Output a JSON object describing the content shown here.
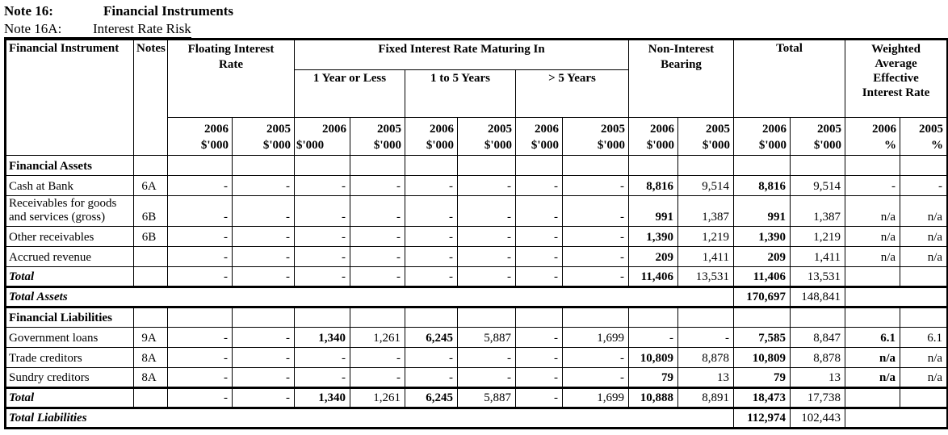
{
  "title": {
    "note_label": "Note 16:",
    "note_title": "Financial Instruments",
    "subnote_label": "Note 16A:",
    "subnote_title": "Interest Rate Risk"
  },
  "table": {
    "corner": {
      "financial_instrument": "Financial Instrument",
      "notes": "Notes"
    },
    "groups": {
      "floating": "Floating Interest Rate",
      "fixed": "Fixed Interest Rate Maturing In",
      "fixed_sub": [
        "1 Year or Less",
        "1 to 5 Years",
        "> 5 Years"
      ],
      "non_interest": "Non-Interest Bearing",
      "total": "Total",
      "weighted": "Weighted Average Effective Interest Rate"
    },
    "year_columns": [
      {
        "year": "2006",
        "unit": "$'000"
      },
      {
        "year": "2005",
        "unit": "$'000"
      },
      {
        "year": "2006",
        "unit": "$'000",
        "unit_align": "left"
      },
      {
        "year": "2005",
        "unit": "$'000"
      },
      {
        "year": "2006",
        "unit": "$'000"
      },
      {
        "year": "2005",
        "unit": "$'000"
      },
      {
        "year": "2006",
        "unit": "$'000"
      },
      {
        "year": "2005",
        "unit": "$'000"
      },
      {
        "year": "2006",
        "unit": "$'000"
      },
      {
        "year": "2005",
        "unit": "$'000"
      },
      {
        "year": "2006",
        "unit": "$'000"
      },
      {
        "year": "2005",
        "unit": "$'000"
      },
      {
        "year": "2006",
        "unit": "%"
      },
      {
        "year": "2005",
        "unit": "%"
      }
    ],
    "rows": [
      {
        "type": "section",
        "label": "Financial Assets"
      },
      {
        "type": "item",
        "label": "Cash at Bank",
        "note": "6A",
        "cells": [
          "-",
          "-",
          "-",
          "-",
          "-",
          "-",
          "-",
          "-",
          "8,816",
          "9,514",
          "8,816",
          "9,514",
          "-",
          "-"
        ],
        "bold": [
          8,
          10
        ]
      },
      {
        "type": "item",
        "label": "Receivables for goods and services (gross)",
        "note": "6B",
        "cells": [
          "-",
          "-",
          "-",
          "-",
          "-",
          "-",
          "-",
          "-",
          "991",
          "1,387",
          "991",
          "1,387",
          "n/a",
          "n/a"
        ],
        "bold": [
          8,
          10
        ]
      },
      {
        "type": "item",
        "label": "Other receivables",
        "note": "6B",
        "cells": [
          "-",
          "-",
          "-",
          "-",
          "-",
          "-",
          "-",
          "-",
          "1,390",
          "1,219",
          "1,390",
          "1,219",
          "n/a",
          "n/a"
        ],
        "bold": [
          8,
          10
        ]
      },
      {
        "type": "item",
        "label": "Accrued revenue",
        "note": "",
        "cells": [
          "-",
          "-",
          "-",
          "-",
          "-",
          "-",
          "-",
          "-",
          "209",
          "1,411",
          "209",
          "1,411",
          "n/a",
          "n/a"
        ],
        "bold": [
          8,
          10
        ]
      },
      {
        "type": "total",
        "label": "Total",
        "note": "",
        "cells": [
          "-",
          "-",
          "-",
          "-",
          "-",
          "-",
          "-",
          "-",
          "11,406",
          "13,531",
          "11,406",
          "13,531",
          "",
          ""
        ],
        "bold": [
          8,
          10
        ],
        "thick_bottom": true
      },
      {
        "type": "grand",
        "label": "Total Assets",
        "v2006": "170,697",
        "v2005": "148,841",
        "thick_bottom": true
      },
      {
        "type": "section",
        "label": "Financial Liabilities"
      },
      {
        "type": "item",
        "label": "Government loans",
        "note": "9A",
        "cells": [
          "-",
          "-",
          "1,340",
          "1,261",
          "6,245",
          "5,887",
          "-",
          "1,699",
          "-",
          "-",
          "7,585",
          "8,847",
          "6.1",
          "6.1"
        ],
        "bold": [
          2,
          4,
          10,
          12
        ]
      },
      {
        "type": "item",
        "label": "Trade creditors",
        "note": "8A",
        "cells": [
          "-",
          "-",
          "-",
          "-",
          "-",
          "-",
          "-",
          "-",
          "10,809",
          "8,878",
          "10,809",
          "8,878",
          "n/a",
          "n/a"
        ],
        "bold": [
          8,
          10,
          12
        ]
      },
      {
        "type": "item",
        "label": "Sundry creditors",
        "note": "8A",
        "cells": [
          "-",
          "-",
          "-",
          "-",
          "-",
          "-",
          "-",
          "-",
          "79",
          "13",
          "79",
          "13",
          "n/a",
          "n/a"
        ],
        "bold": [
          8,
          10,
          12
        ],
        "thick_bottom": true
      },
      {
        "type": "total",
        "label": "Total",
        "note": "",
        "cells": [
          "-",
          "-",
          "1,340",
          "1,261",
          "6,245",
          "5,887",
          "-",
          "1,699",
          "10,888",
          "8,891",
          "18,473",
          "17,738",
          "",
          ""
        ],
        "bold": [
          2,
          4,
          8,
          10
        ],
        "thick_bottom": true
      },
      {
        "type": "grand",
        "label": "Total Liabilities",
        "v2006": "112,974",
        "v2005": "102,443",
        "thick_bottom": true
      }
    ]
  }
}
